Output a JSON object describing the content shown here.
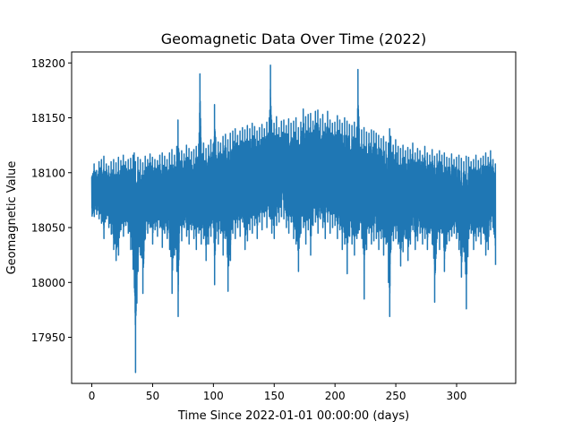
{
  "chart_data": {
    "type": "line",
    "title": "Geomagnetic Data Over Time (2022)",
    "xlabel": "Time Since 2022-01-01 00:00:00 (days)",
    "ylabel": "Geomagnetic Value",
    "xlim": [
      -16.6,
      348.6
    ],
    "ylim": [
      17908,
      18210
    ],
    "xticks": [
      0,
      50,
      100,
      150,
      200,
      250,
      300
    ],
    "yticks": [
      17950,
      18000,
      18050,
      18100,
      18150,
      18200
    ],
    "grid": false,
    "legend": "none",
    "series": [
      {
        "color": "#1f77b4",
        "x": [
          0,
          2,
          4,
          6,
          8,
          10,
          12,
          14,
          16,
          18,
          20,
          22,
          24,
          26,
          28,
          30,
          32,
          34,
          35,
          36,
          38,
          40,
          42,
          44,
          46,
          48,
          50,
          52,
          54,
          56,
          58,
          60,
          62,
          64,
          66,
          68,
          70,
          71,
          72,
          74,
          76,
          78,
          80,
          82,
          84,
          86,
          88,
          89,
          90,
          92,
          94,
          96,
          98,
          100,
          101,
          102,
          104,
          106,
          108,
          110,
          112,
          114,
          116,
          118,
          120,
          122,
          124,
          126,
          128,
          130,
          132,
          134,
          136,
          138,
          140,
          142,
          144,
          146,
          147,
          148,
          150,
          152,
          154,
          156,
          158,
          160,
          162,
          164,
          166,
          168,
          170,
          172,
          174,
          176,
          178,
          180,
          182,
          184,
          186,
          188,
          190,
          192,
          194,
          196,
          198,
          200,
          202,
          204,
          206,
          208,
          210,
          212,
          214,
          216,
          218,
          219,
          220,
          222,
          224,
          226,
          228,
          230,
          232,
          234,
          236,
          238,
          240,
          242,
          244,
          245,
          246,
          248,
          250,
          252,
          254,
          256,
          258,
          260,
          262,
          264,
          266,
          268,
          270,
          272,
          274,
          276,
          278,
          280,
          282,
          284,
          286,
          288,
          290,
          292,
          294,
          296,
          298,
          300,
          302,
          304,
          306,
          308,
          310,
          312,
          314,
          316,
          318,
          320,
          322,
          324,
          326,
          328,
          330,
          332
        ],
        "y_high": [
          18105,
          18108,
          18102,
          18110,
          18112,
          18115,
          18108,
          18106,
          18110,
          18112,
          18109,
          18114,
          18111,
          18116,
          18110,
          18112,
          18113,
          18116,
          18118,
          18110,
          18114,
          18112,
          18109,
          18115,
          18112,
          18117,
          18114,
          18112,
          18111,
          18116,
          18118,
          18115,
          18112,
          18118,
          18121,
          18116,
          18124,
          18148,
          18118,
          18120,
          18117,
          18125,
          18122,
          18119,
          18121,
          18124,
          18126,
          18190,
          18128,
          18127,
          18122,
          18125,
          18130,
          18126,
          18162,
          18132,
          18128,
          18127,
          18133,
          18135,
          18130,
          18136,
          18138,
          18140,
          18134,
          18138,
          18141,
          18139,
          18143,
          18140,
          18145,
          18142,
          18138,
          18141,
          18144,
          18140,
          18146,
          18150,
          18198,
          18148,
          18145,
          18151,
          18141,
          18147,
          18148,
          18143,
          18149,
          18145,
          18147,
          18150,
          18141,
          18146,
          18158,
          18151,
          18153,
          18154,
          18147,
          18156,
          18157,
          18149,
          18153,
          18145,
          18156,
          18148,
          18145,
          18146,
          18152,
          18148,
          18145,
          18150,
          18147,
          18144,
          18143,
          18146,
          18141,
          18194,
          18140,
          18139,
          18141,
          18137,
          18136,
          18139,
          18138,
          18136,
          18134,
          18131,
          18133,
          18128,
          18127,
          18140,
          18133,
          18125,
          18130,
          18124,
          18122,
          18125,
          18120,
          18123,
          18121,
          18127,
          18118,
          18122,
          18120,
          18116,
          18124,
          18118,
          18116,
          18121,
          18115,
          18117,
          18120,
          18116,
          18118,
          18114,
          18113,
          18117,
          18112,
          18114,
          18116,
          18113,
          18110,
          18115,
          18114,
          18110,
          18112,
          18116,
          18111,
          18113,
          18115,
          18118,
          18114,
          18120,
          18112,
          18108
        ],
        "y_low": [
          18055,
          18060,
          18062,
          18058,
          18054,
          18040,
          18058,
          18050,
          18044,
          18030,
          18020,
          18025,
          18048,
          18042,
          18052,
          18045,
          18030,
          18012,
          17995,
          17918,
          18010,
          18025,
          17990,
          18040,
          18045,
          18050,
          18035,
          18048,
          18042,
          18050,
          18032,
          18045,
          18040,
          18030,
          17990,
          18025,
          18010,
          17969,
          18045,
          18038,
          18050,
          18042,
          18035,
          18048,
          18040,
          18030,
          18045,
          18048,
          18035,
          18040,
          18020,
          18035,
          18042,
          18050,
          17998,
          18040,
          18035,
          18045,
          18025,
          18040,
          17992,
          18020,
          18045,
          18040,
          18050,
          18042,
          18055,
          18030,
          18038,
          18048,
          18045,
          18052,
          18040,
          18055,
          18048,
          18060,
          18050,
          18060,
          18058,
          18045,
          18040,
          18052,
          18055,
          18060,
          18058,
          18050,
          18045,
          18055,
          18040,
          18035,
          18010,
          18045,
          18050,
          18035,
          18048,
          18025,
          18052,
          18055,
          18045,
          18058,
          18050,
          18040,
          18055,
          18045,
          18050,
          18052,
          18040,
          18048,
          18030,
          18035,
          18008,
          18042,
          18035,
          18025,
          18040,
          18045,
          18048,
          18040,
          17985,
          18030,
          18045,
          18035,
          18038,
          18040,
          18030,
          18040,
          18025,
          18035,
          18000,
          17969,
          18030,
          18038,
          18040,
          18035,
          18015,
          18028,
          18040,
          18020,
          18035,
          18048,
          18030,
          18038,
          18045,
          18035,
          18040,
          18030,
          18045,
          18035,
          17982,
          18040,
          18030,
          18045,
          18010,
          18035,
          18038,
          18042,
          18045,
          18040,
          18030,
          18005,
          18028,
          17976,
          18040,
          18045,
          18030,
          18038,
          18042,
          18035,
          18045,
          18025,
          18030,
          18048,
          18050,
          18016
        ]
      }
    ]
  }
}
